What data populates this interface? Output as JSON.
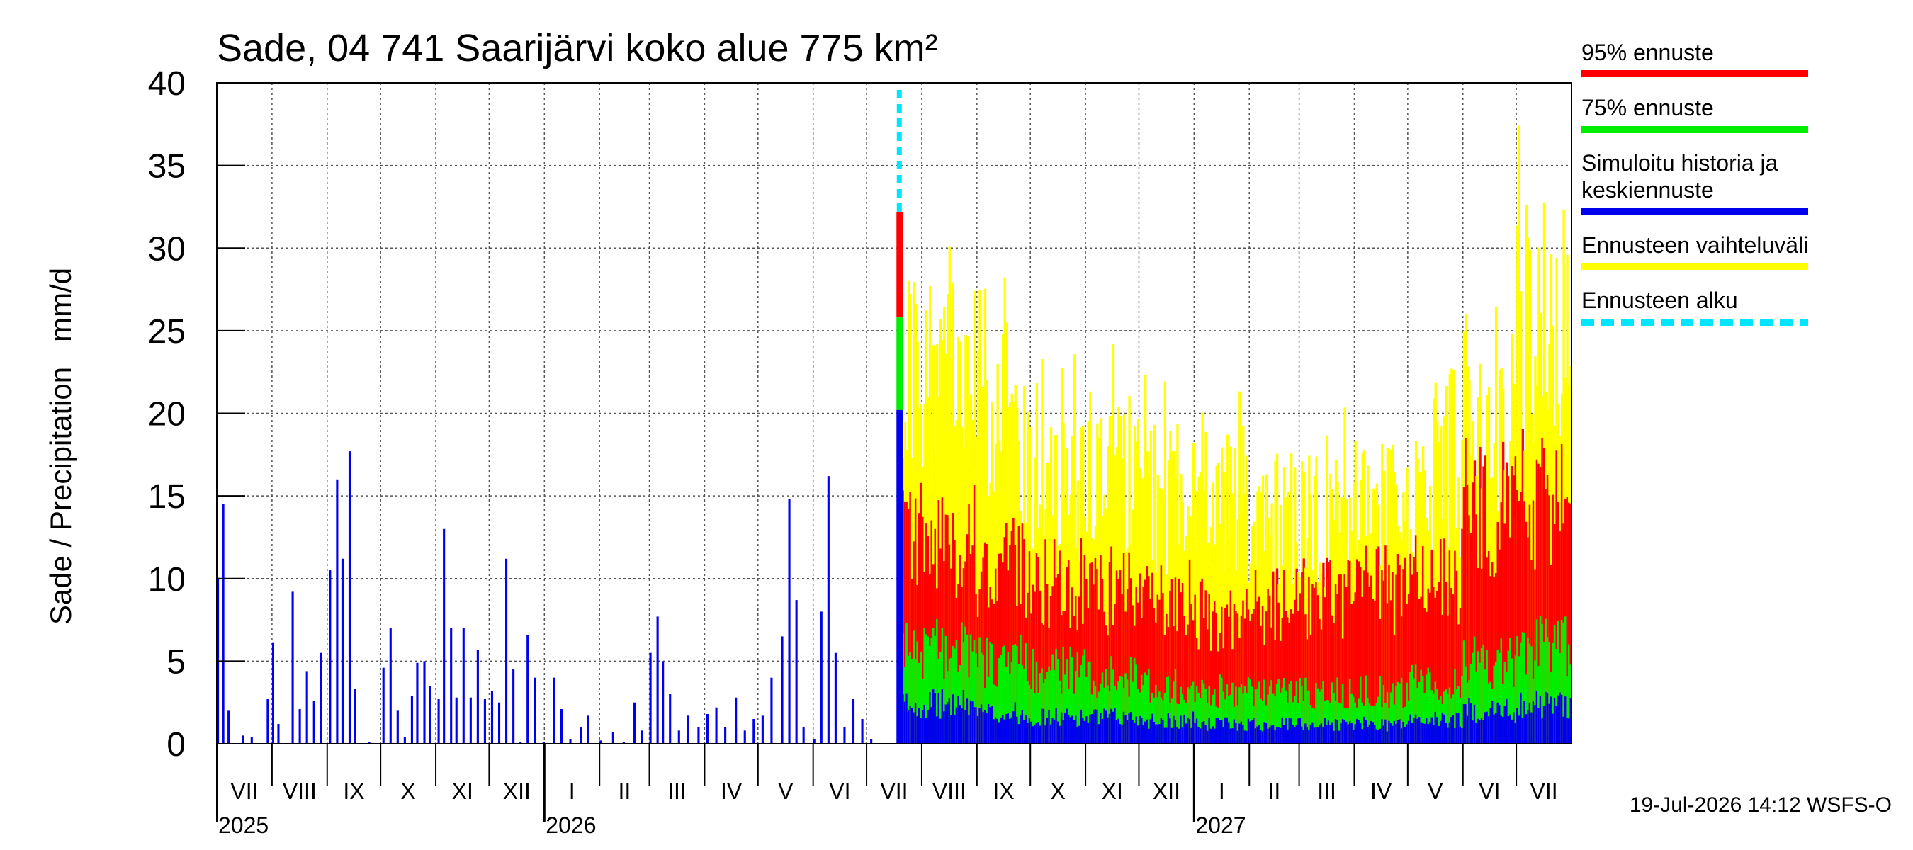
{
  "chart_data": {
    "type": "bar",
    "title": "Sade, 04 741 Saarijärvi koko alue 775 km²",
    "ylabel": "Sade / Precipitation   mm/d",
    "ylim": [
      0,
      40
    ],
    "yticks": [
      0,
      5,
      10,
      15,
      20,
      25,
      30,
      35,
      40
    ],
    "grid": true,
    "legend_position": "right",
    "timestamp": "19-Jul-2026 14:12 WSFS-O",
    "month_labels": [
      "VII",
      "VIII",
      "IX",
      "X",
      "XI",
      "XII",
      "I",
      "II",
      "III",
      "IV",
      "V",
      "VI",
      "VII",
      "VIII",
      "IX",
      "X",
      "XI",
      "XII",
      "I",
      "II",
      "III",
      "IV",
      "V",
      "VI",
      "VII"
    ],
    "year_labels": [
      "2025",
      "2026",
      "2027"
    ],
    "x_range": [
      "2025-07-01",
      "2027-07-31"
    ],
    "forecast_start": "2026-07-19",
    "forecast_start_bar": {
      "p95": 32.2,
      "p75": 25.8,
      "median": 20.2
    },
    "legend": [
      {
        "label": "95% ennuste",
        "color": "#ff0000",
        "style": "solid"
      },
      {
        "label": "75% ennuste",
        "color": "#00ee00",
        "style": "solid"
      },
      {
        "label": "Simuloitu historia ja keskiennuste",
        "color": "#0000ee",
        "style": "solid"
      },
      {
        "label": "Ennusteen vaihteluväli",
        "color": "#ffff00",
        "style": "solid"
      },
      {
        "label": "Ennusteen alku",
        "color": "#00e5ff",
        "style": "dashed"
      }
    ],
    "history": [
      [
        "2025-07-01",
        10.0
      ],
      [
        "2025-07-04",
        14.5
      ],
      [
        "2025-07-07",
        2.0
      ],
      [
        "2025-07-15",
        0.5
      ],
      [
        "2025-07-20",
        0.4
      ],
      [
        "2025-07-29",
        2.7
      ],
      [
        "2025-08-01",
        6.1
      ],
      [
        "2025-08-04",
        1.2
      ],
      [
        "2025-08-12",
        9.2
      ],
      [
        "2025-08-16",
        2.1
      ],
      [
        "2025-08-20",
        4.4
      ],
      [
        "2025-08-24",
        2.6
      ],
      [
        "2025-08-28",
        5.5
      ],
      [
        "2025-09-02",
        10.5
      ],
      [
        "2025-09-06",
        16.0
      ],
      [
        "2025-09-09",
        11.2
      ],
      [
        "2025-09-13",
        17.7
      ],
      [
        "2025-09-16",
        3.3
      ],
      [
        "2025-09-24",
        0.1
      ],
      [
        "2025-10-02",
        4.6
      ],
      [
        "2025-10-06",
        7.0
      ],
      [
        "2025-10-10",
        2.0
      ],
      [
        "2025-10-14",
        0.4
      ],
      [
        "2025-10-18",
        2.9
      ],
      [
        "2025-10-21",
        4.9
      ],
      [
        "2025-10-25",
        5.0
      ],
      [
        "2025-10-28",
        3.5
      ],
      [
        "2025-11-02",
        2.7
      ],
      [
        "2025-11-05",
        13.0
      ],
      [
        "2025-11-09",
        7.0
      ],
      [
        "2025-11-12",
        2.8
      ],
      [
        "2025-11-16",
        7.0
      ],
      [
        "2025-11-20",
        2.8
      ],
      [
        "2025-11-24",
        5.7
      ],
      [
        "2025-11-28",
        2.7
      ],
      [
        "2025-12-02",
        3.2
      ],
      [
        "2025-12-06",
        2.5
      ],
      [
        "2025-12-10",
        11.2
      ],
      [
        "2025-12-14",
        4.5
      ],
      [
        "2025-12-18",
        0.1
      ],
      [
        "2025-12-22",
        6.6
      ],
      [
        "2025-12-26",
        4.0
      ],
      [
        "2025-12-31",
        0.1
      ],
      [
        "2026-01-06",
        4.0
      ],
      [
        "2026-01-10",
        2.1
      ],
      [
        "2026-01-15",
        0.3
      ],
      [
        "2026-01-21",
        1.0
      ],
      [
        "2026-01-25",
        1.7
      ],
      [
        "2026-02-01",
        0.2
      ],
      [
        "2026-02-08",
        0.7
      ],
      [
        "2026-02-14",
        0.1
      ],
      [
        "2026-02-20",
        2.5
      ],
      [
        "2026-02-24",
        0.8
      ],
      [
        "2026-03-01",
        5.5
      ],
      [
        "2026-03-05",
        7.7
      ],
      [
        "2026-03-08",
        5.0
      ],
      [
        "2026-03-12",
        3.0
      ],
      [
        "2026-03-17",
        0.8
      ],
      [
        "2026-03-22",
        1.7
      ],
      [
        "2026-03-28",
        1.0
      ],
      [
        "2026-04-02",
        1.8
      ],
      [
        "2026-04-07",
        2.2
      ],
      [
        "2026-04-12",
        1.0
      ],
      [
        "2026-04-18",
        2.8
      ],
      [
        "2026-04-23",
        0.8
      ],
      [
        "2026-04-28",
        1.5
      ],
      [
        "2026-05-03",
        1.7
      ],
      [
        "2026-05-08",
        4.0
      ],
      [
        "2026-05-14",
        6.5
      ],
      [
        "2026-05-18",
        14.8
      ],
      [
        "2026-05-22",
        8.7
      ],
      [
        "2026-05-26",
        1.0
      ],
      [
        "2026-06-01",
        0.3
      ],
      [
        "2026-06-05",
        8.0
      ],
      [
        "2026-06-09",
        16.2
      ],
      [
        "2026-06-13",
        5.5
      ],
      [
        "2026-06-18",
        1.0
      ],
      [
        "2026-06-23",
        2.7
      ],
      [
        "2026-06-28",
        1.5
      ],
      [
        "2026-07-03",
        0.3
      ]
    ],
    "forecast": [
      [
        "2026-08",
        33.3,
        13.5,
        6.5,
        3.0
      ],
      [
        "2026-09",
        28.3,
        11.5,
        5.5,
        2.3
      ],
      [
        "2026-10",
        24.0,
        10.5,
        5.0,
        2.0
      ],
      [
        "2026-11",
        24.5,
        10.0,
        4.5,
        2.0
      ],
      [
        "2026-12",
        22.5,
        9.5,
        4.0,
        1.8
      ],
      [
        "2027-01",
        21.5,
        8.5,
        3.5,
        1.5
      ],
      [
        "2027-02",
        20.0,
        9.0,
        3.5,
        1.5
      ],
      [
        "2027-03",
        21.0,
        9.5,
        3.5,
        1.5
      ],
      [
        "2027-04",
        22.5,
        10.0,
        3.5,
        1.5
      ],
      [
        "2027-05",
        23.5,
        11.0,
        4.0,
        1.8
      ],
      [
        "2027-06",
        27.5,
        15.5,
        5.5,
        2.5
      ],
      [
        "2027-07",
        38.0,
        16.0,
        6.5,
        3.0
      ]
    ]
  }
}
